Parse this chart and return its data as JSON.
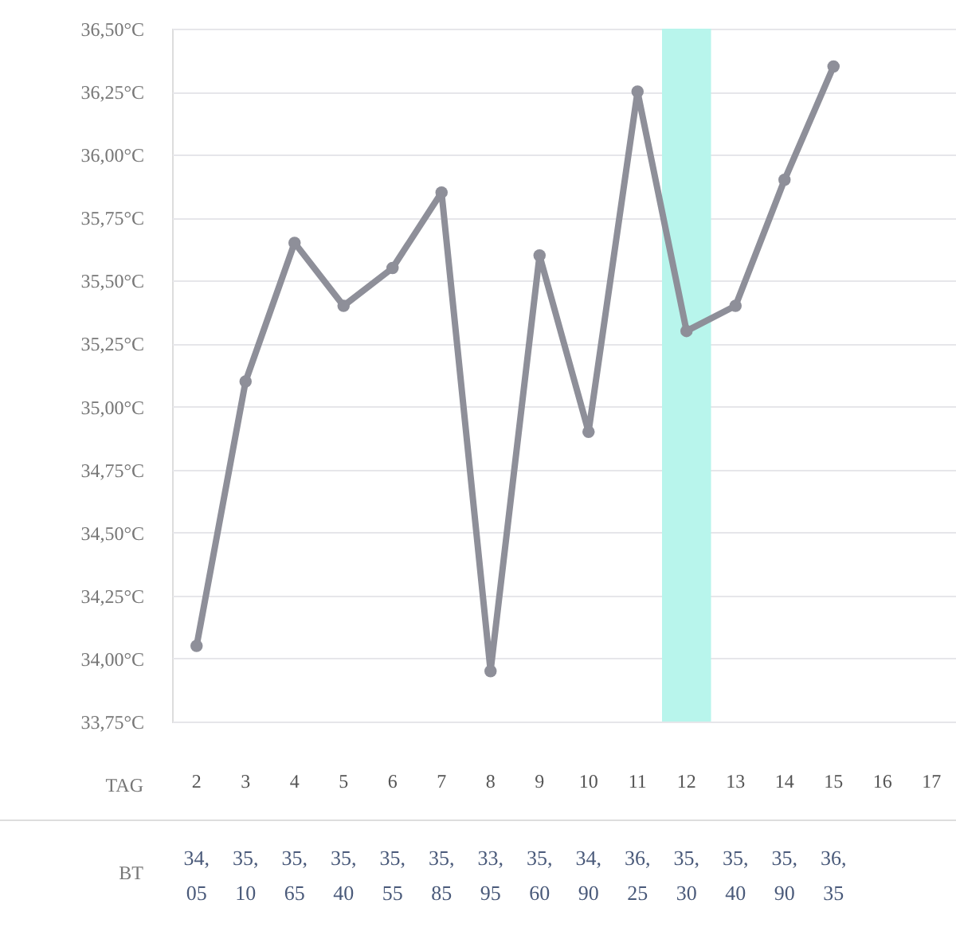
{
  "chart_data": {
    "type": "line",
    "xlabel": "TAG",
    "annotations": [
      "BT"
    ],
    "categories": [
      "2",
      "3",
      "4",
      "5",
      "6",
      "7",
      "8",
      "9",
      "10",
      "11",
      "12",
      "13",
      "14",
      "15",
      "16",
      "17"
    ],
    "series": [
      {
        "color": "#8e8f99",
        "values": [
          34.05,
          35.1,
          35.65,
          35.4,
          35.55,
          35.85,
          33.95,
          35.6,
          34.9,
          36.25,
          35.3,
          35.4,
          35.9,
          36.35,
          null,
          null
        ],
        "value_labels": [
          "34,05",
          "35,10",
          "35,65",
          "35,40",
          "35,55",
          "35,85",
          "33,95",
          "35,60",
          "34,90",
          "36,25",
          "35,30",
          "35,40",
          "35,90",
          "36,35",
          null,
          null
        ]
      }
    ],
    "ylim": [
      33.75,
      36.5
    ],
    "yticks": [
      {
        "value": 33.75,
        "label": "33,75°C"
      },
      {
        "value": 34.0,
        "label": "34,00°C"
      },
      {
        "value": 34.25,
        "label": "34,25°C"
      },
      {
        "value": 34.5,
        "label": "34,50°C"
      },
      {
        "value": 34.75,
        "label": "34,75°C"
      },
      {
        "value": 35.0,
        "label": "35,00°C"
      },
      {
        "value": 35.25,
        "label": "35,25°C"
      },
      {
        "value": 35.5,
        "label": "35,50°C"
      },
      {
        "value": 35.75,
        "label": "35,75°C"
      },
      {
        "value": 36.0,
        "label": "36,00°C"
      },
      {
        "value": 36.25,
        "label": "36,25°C"
      },
      {
        "value": 36.5,
        "label": "36,50°C"
      }
    ],
    "bands": [
      {
        "axis": "x",
        "from": "12",
        "to": "12",
        "color": "#b8f5ec"
      }
    ],
    "grid": "y",
    "marker": "circle",
    "line_style": "solid"
  }
}
